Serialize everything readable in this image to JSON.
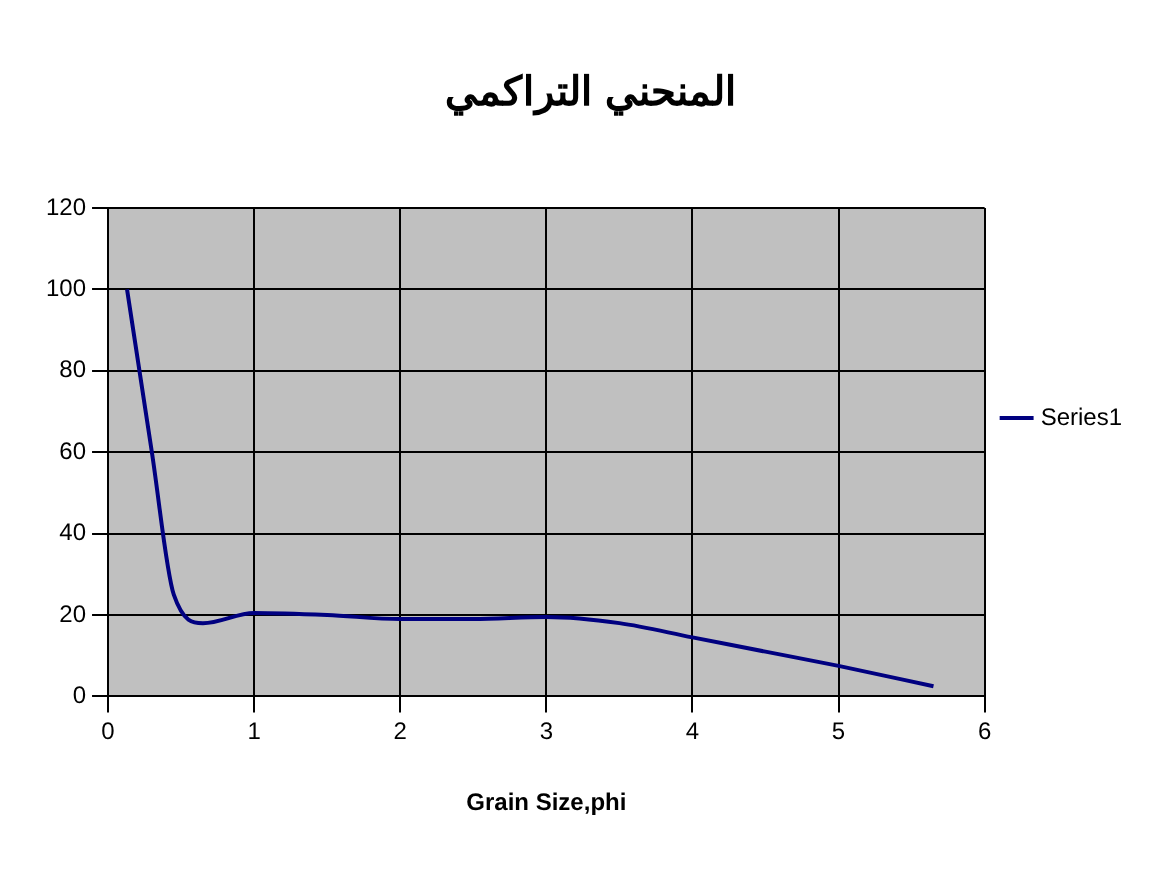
{
  "chart_data": {
    "type": "line",
    "title": "المنحني التراكمي",
    "xlabel": "Grain Size,phi",
    "xlim": [
      0,
      6
    ],
    "xticks": [
      0,
      1,
      2,
      3,
      4,
      5,
      6
    ],
    "ylim": [
      0,
      120
    ],
    "yticks": [
      0,
      20,
      40,
      60,
      80,
      100,
      120
    ],
    "grid": true,
    "legend": "right",
    "marker": "none",
    "line_style": "solid",
    "series": [
      {
        "name": "Series1",
        "color": "#000080",
        "x": [
          0.13,
          0.3,
          0.45,
          0.65,
          1,
          1.5,
          2,
          2.5,
          3,
          3.5,
          4,
          4.5,
          5,
          5.65
        ],
        "values": [
          100,
          60,
          25,
          18,
          20.5,
          20,
          19,
          19,
          19.5,
          18,
          14.5,
          11,
          7.5,
          2.5
        ]
      }
    ]
  }
}
